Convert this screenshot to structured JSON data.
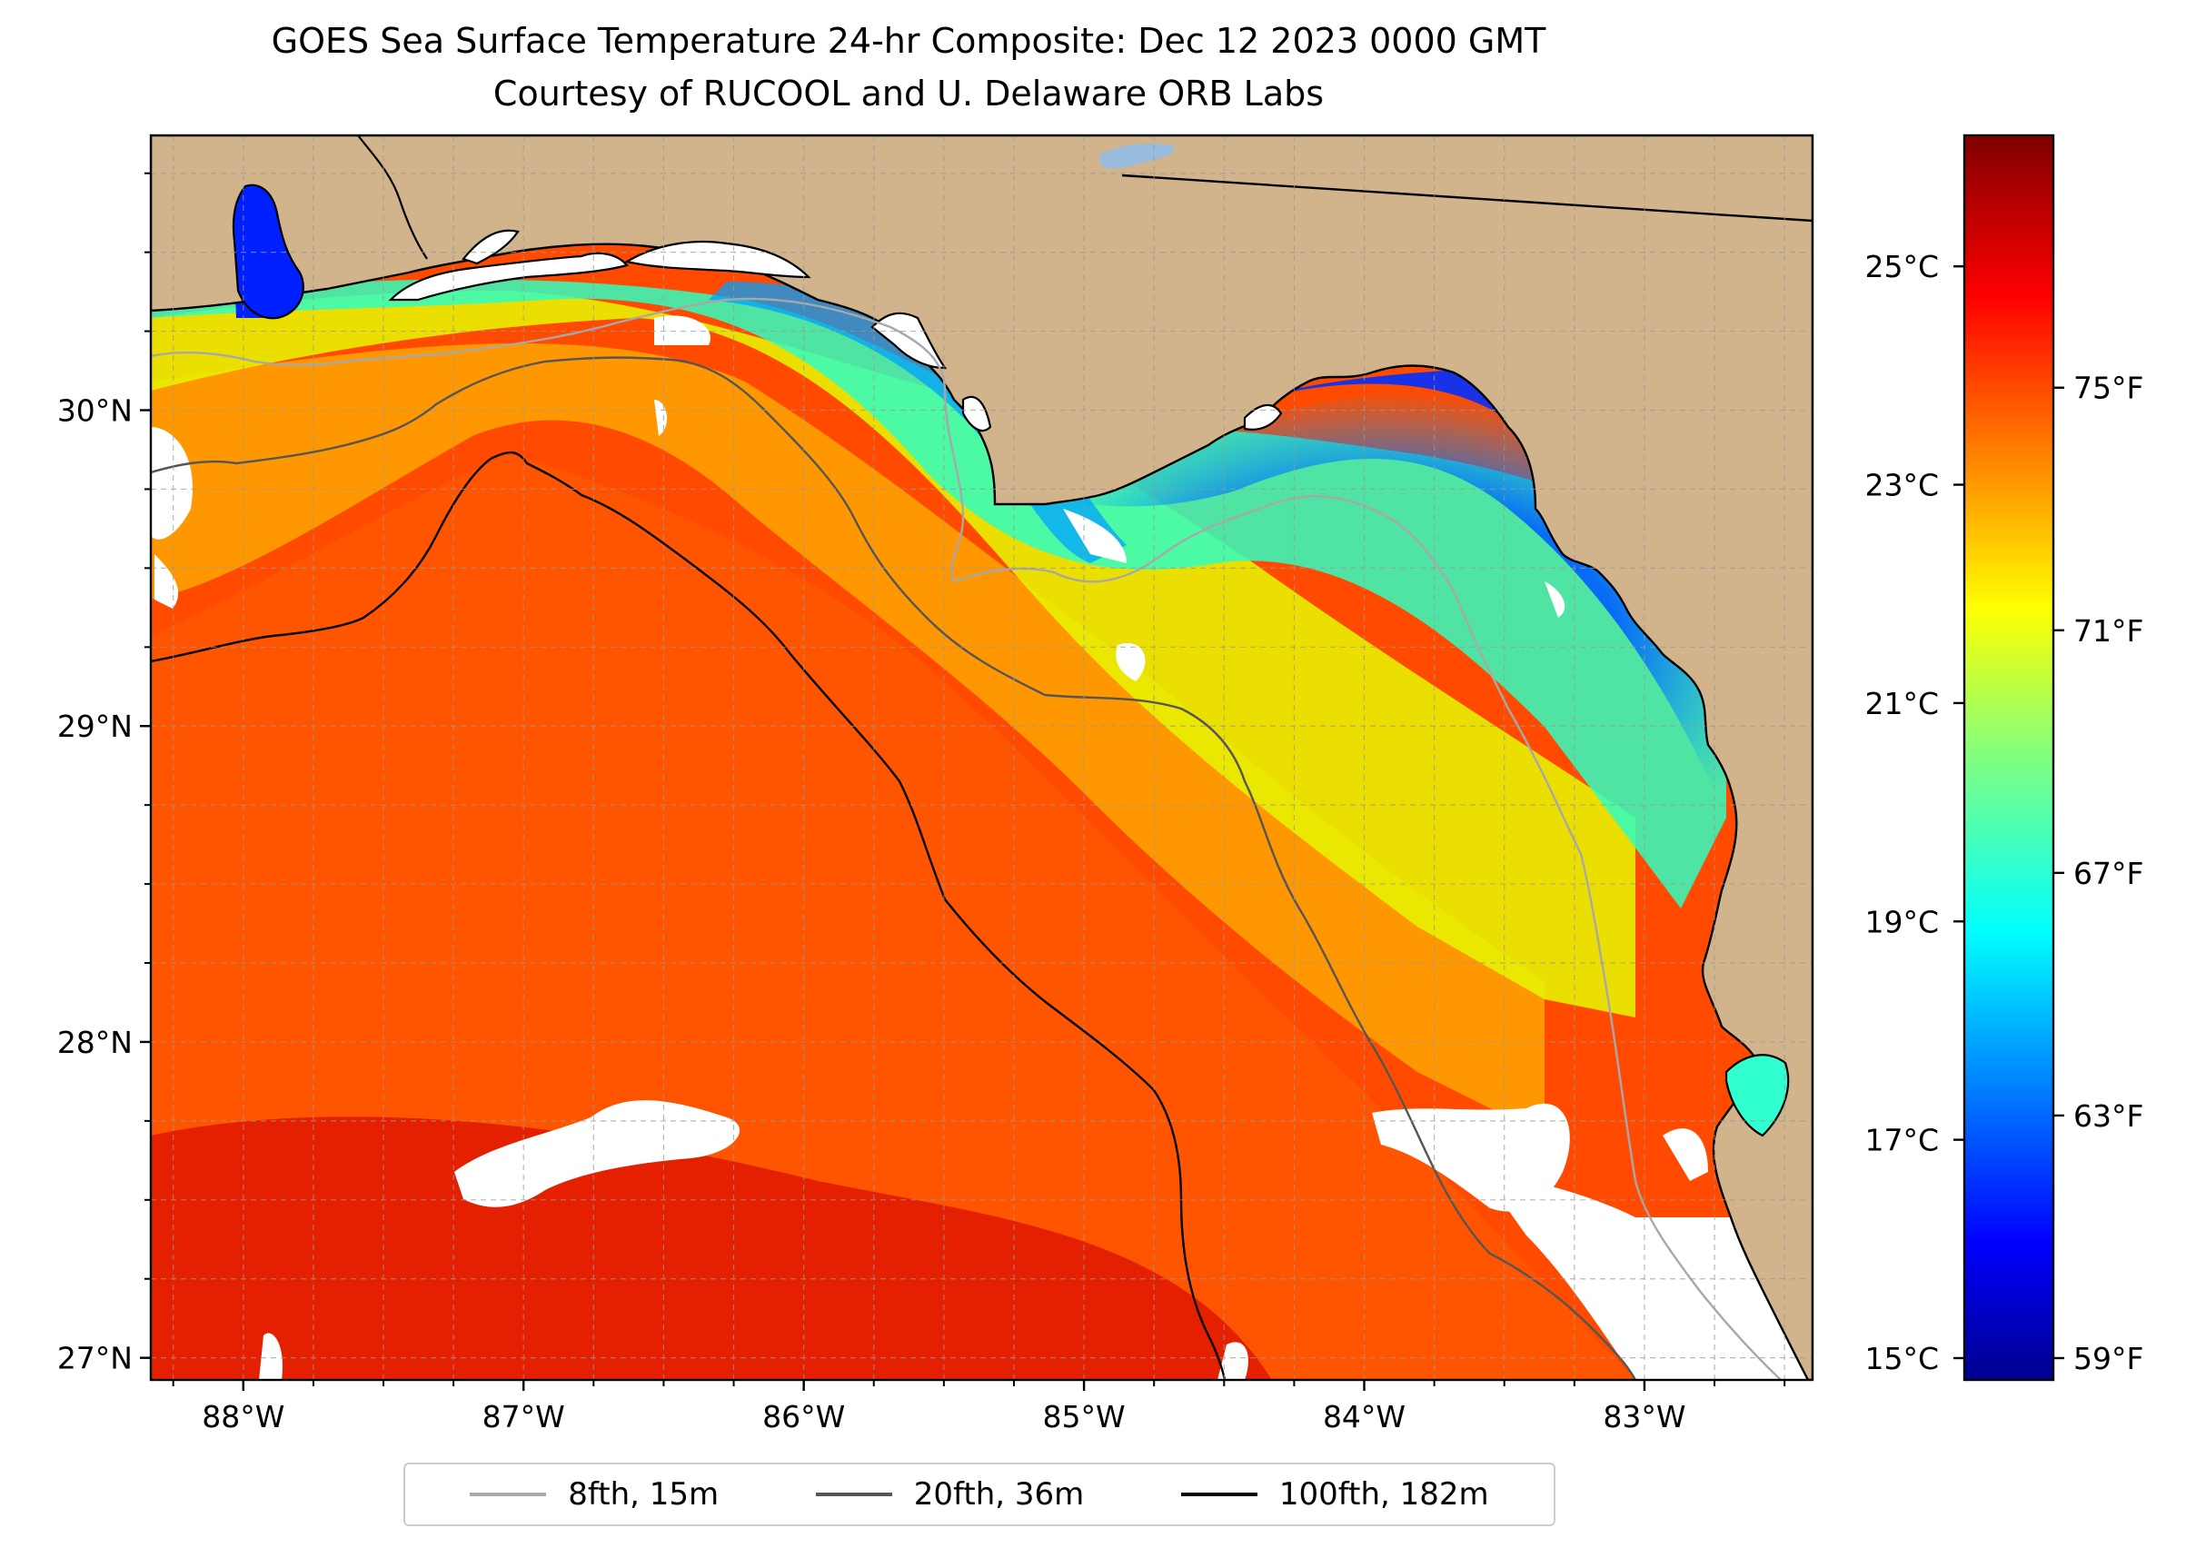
{
  "title": "GOES Sea Surface Temperature 24-hr Composite: Dec 12 2023 0000 GMT",
  "subtitle": "Courtesy of RUCOOL and U. Delaware ORB Labs",
  "map": {
    "lon_range": [
      -88.33,
      -82.4
    ],
    "lat_range": [
      26.93,
      30.87
    ],
    "lon_ticks": [
      {
        "value": -88,
        "label": "88°W"
      },
      {
        "value": -87,
        "label": "87°W"
      },
      {
        "value": -86,
        "label": "86°W"
      },
      {
        "value": -85,
        "label": "85°W"
      },
      {
        "value": -84,
        "label": "84°W"
      },
      {
        "value": -83,
        "label": "83°W"
      }
    ],
    "lat_ticks": [
      {
        "value": 27,
        "label": "27°N"
      },
      {
        "value": 28,
        "label": "28°N"
      },
      {
        "value": 29,
        "label": "29°N"
      },
      {
        "value": 30,
        "label": "30°N"
      }
    ],
    "grid": true,
    "grid_spacing_deg": 0.25,
    "land_color": "#d2b48c",
    "no_data_color": "#ffffff"
  },
  "colorbar": {
    "colormap": "jet",
    "range_c": [
      14.8,
      26.2
    ],
    "celsius_ticks": [
      {
        "value": 15,
        "label": "15°C"
      },
      {
        "value": 17,
        "label": "17°C"
      },
      {
        "value": 19,
        "label": "19°C"
      },
      {
        "value": 21,
        "label": "21°C"
      },
      {
        "value": 23,
        "label": "23°C"
      },
      {
        "value": 25,
        "label": "25°C"
      }
    ],
    "fahrenheit_ticks": [
      {
        "value": 59,
        "label": "59°F"
      },
      {
        "value": 63,
        "label": "63°F"
      },
      {
        "value": 67,
        "label": "67°F"
      },
      {
        "value": 71,
        "label": "71°F"
      },
      {
        "value": 75,
        "label": "75°F"
      }
    ]
  },
  "legend": {
    "placement": "bottom-center",
    "items": [
      {
        "label": "8fth, 15m",
        "color": "#aaaaaa"
      },
      {
        "label": "20fth, 36m",
        "color": "#555555"
      },
      {
        "label": "100fth, 182m",
        "color": "#000000"
      }
    ]
  }
}
